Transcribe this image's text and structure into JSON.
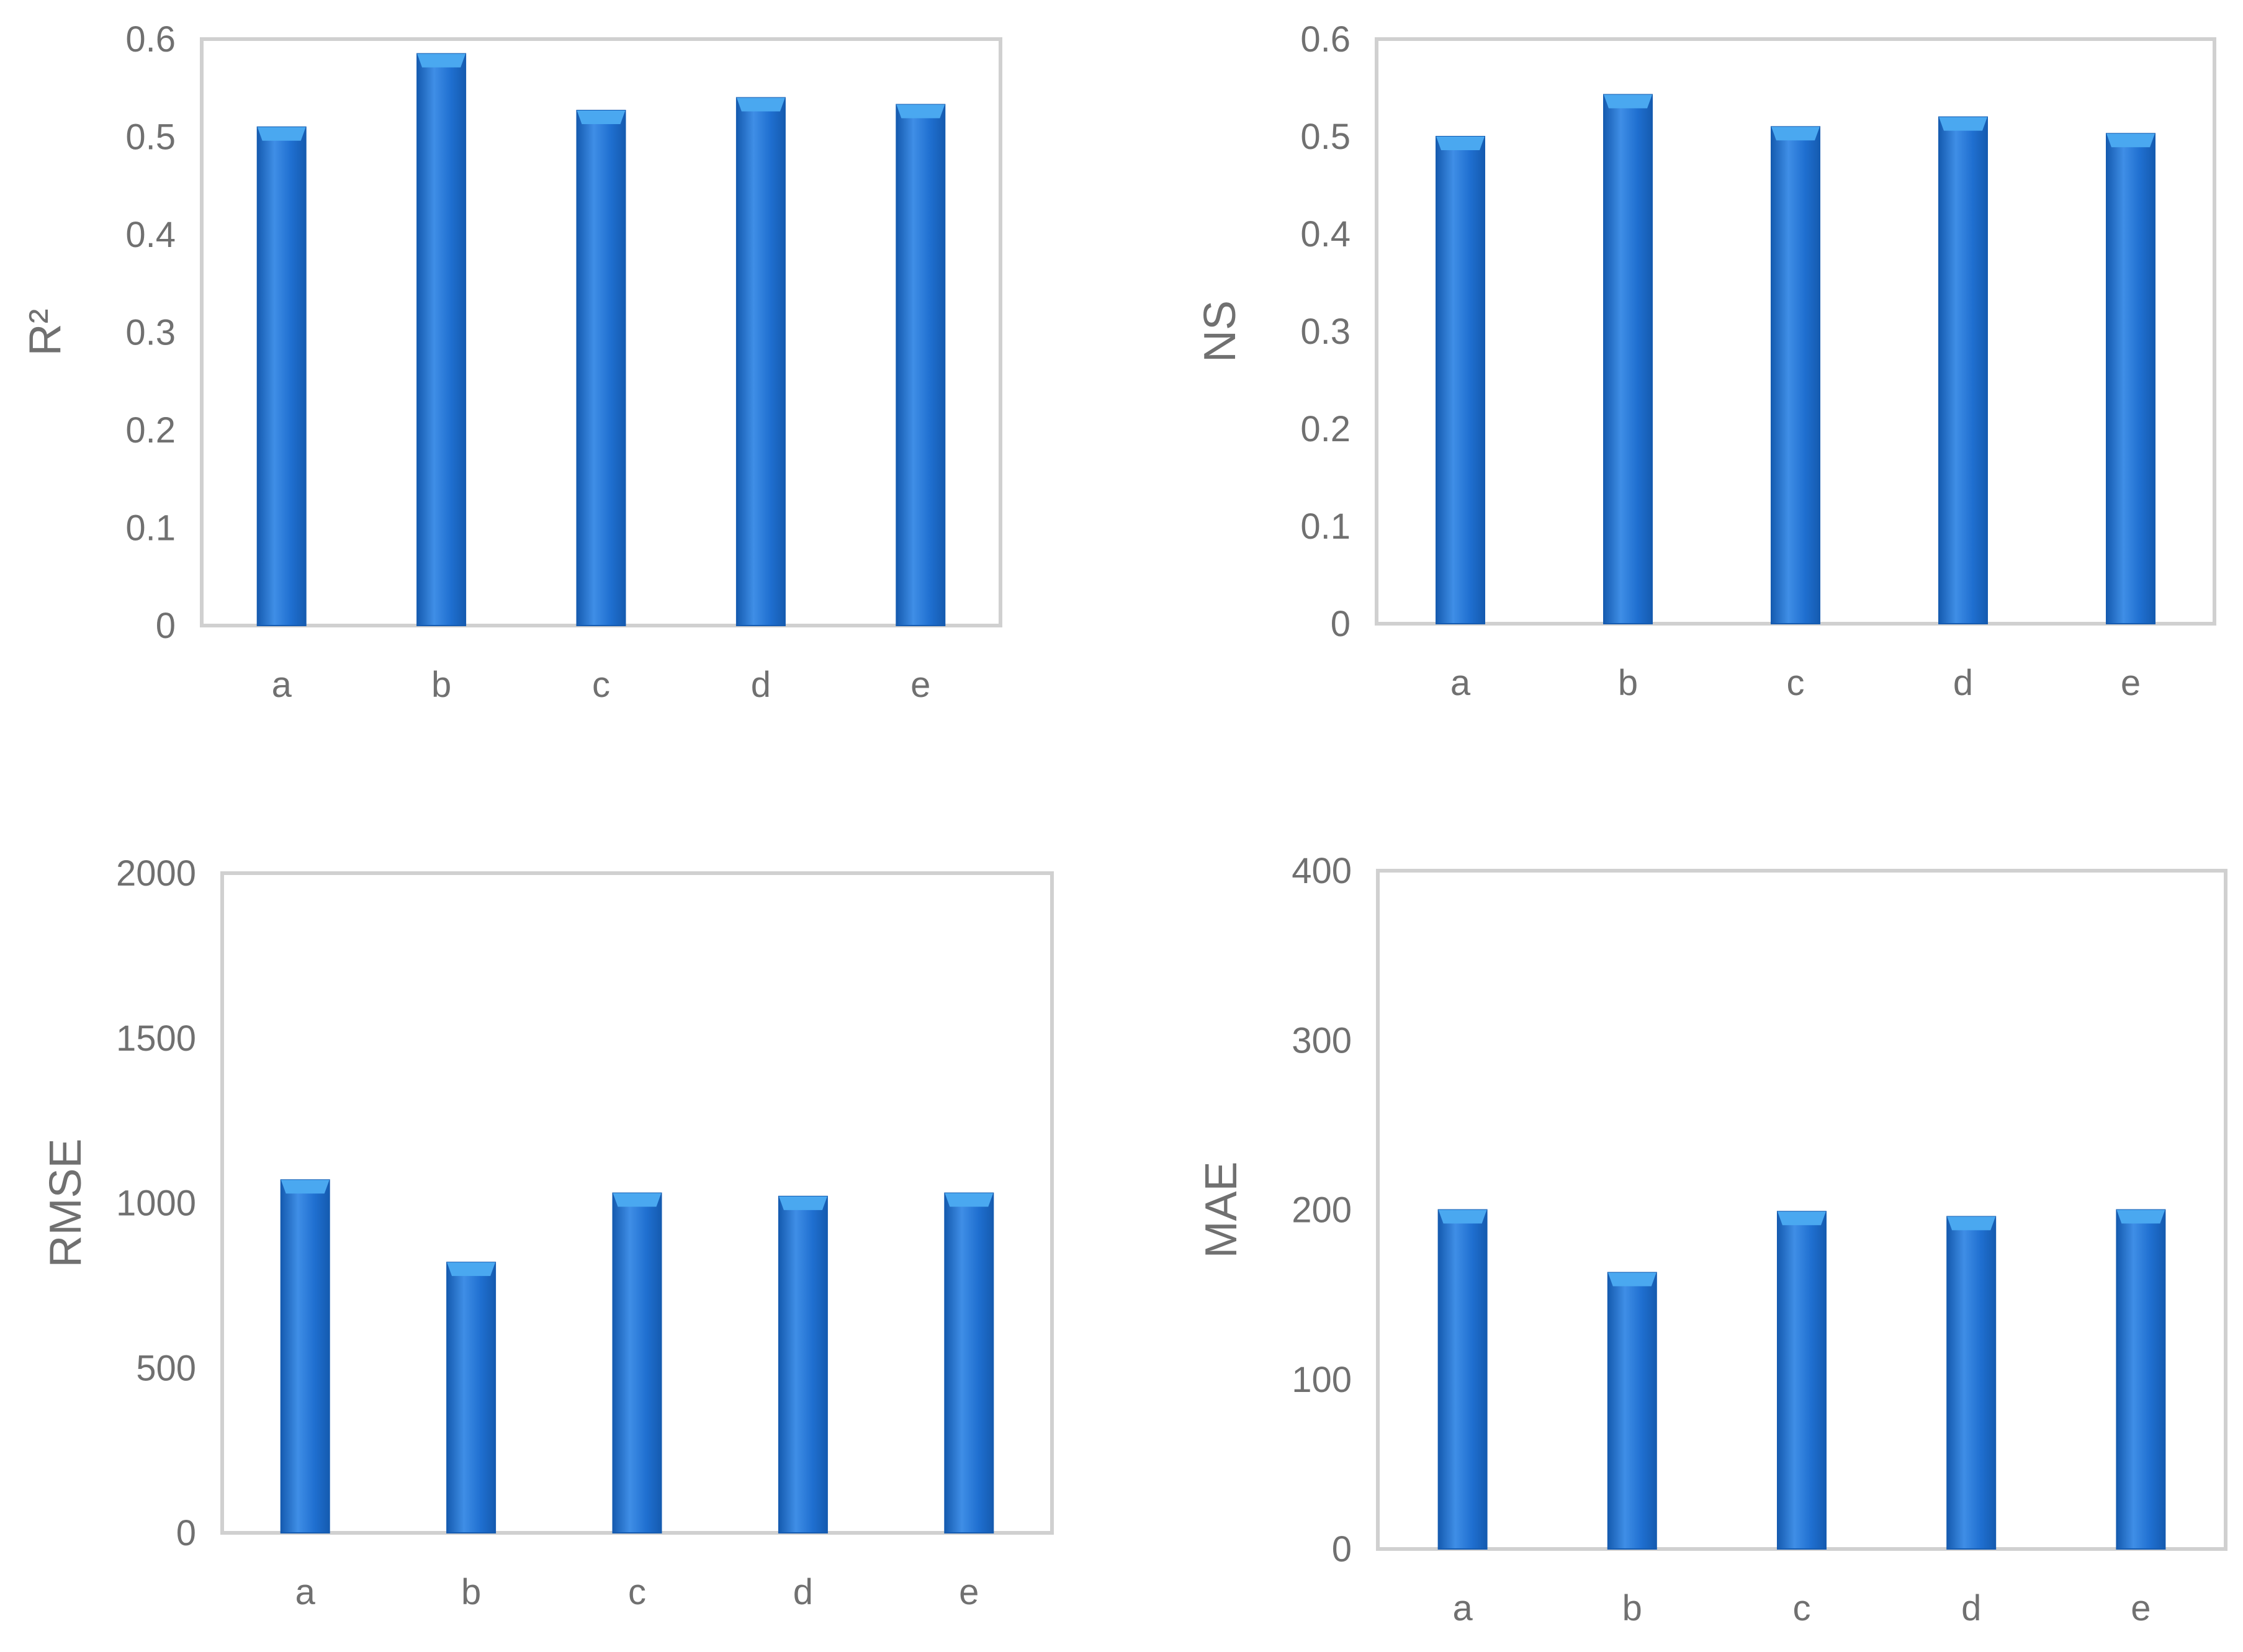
{
  "colors": {
    "bar_main": "#1f6fd0",
    "bar_dark": "#155bb0",
    "bar_light": "#3f8ee6",
    "bar_cap": "#4aa8f0",
    "frame": "#d0d0d0",
    "text": "#707070"
  },
  "chart_data": [
    {
      "type": "bar",
      "categories": [
        "a",
        "b",
        "c",
        "d",
        "e"
      ],
      "values": [
        0.51,
        0.585,
        0.527,
        0.54,
        0.533
      ],
      "ylabel": "R²",
      "xlabel": "",
      "ylim": [
        0,
        0.6
      ],
      "yticks": [
        "0",
        "0.1",
        "0.2",
        "0.3",
        "0.4",
        "0.5",
        "0.6"
      ],
      "grid": false,
      "legend": "none"
    },
    {
      "type": "bar",
      "categories": [
        "a",
        "b",
        "c",
        "d",
        "e"
      ],
      "values": [
        0.5,
        0.543,
        0.51,
        0.52,
        0.503
      ],
      "ylabel": "NS",
      "xlabel": "",
      "ylim": [
        0,
        0.6
      ],
      "yticks": [
        "0",
        "0.1",
        "0.2",
        "0.3",
        "0.4",
        "0.5",
        "0.6"
      ],
      "grid": false,
      "legend": "none"
    },
    {
      "type": "bar",
      "categories": [
        "a",
        "b",
        "c",
        "d",
        "e"
      ],
      "values": [
        1070,
        820,
        1030,
        1020,
        1030
      ],
      "ylabel": "RMSE",
      "xlabel": "",
      "ylim": [
        0,
        2000
      ],
      "yticks": [
        "0",
        "500",
        "1000",
        "1500",
        "2000"
      ],
      "grid": false,
      "legend": "none"
    },
    {
      "type": "bar",
      "categories": [
        "a",
        "b",
        "c",
        "d",
        "e"
      ],
      "values": [
        200,
        163,
        199,
        196,
        200
      ],
      "ylabel": "MAE",
      "xlabel": "",
      "ylim": [
        0,
        400
      ],
      "yticks": [
        "0",
        "100",
        "200",
        "300",
        "400"
      ],
      "grid": false,
      "legend": "none"
    }
  ]
}
